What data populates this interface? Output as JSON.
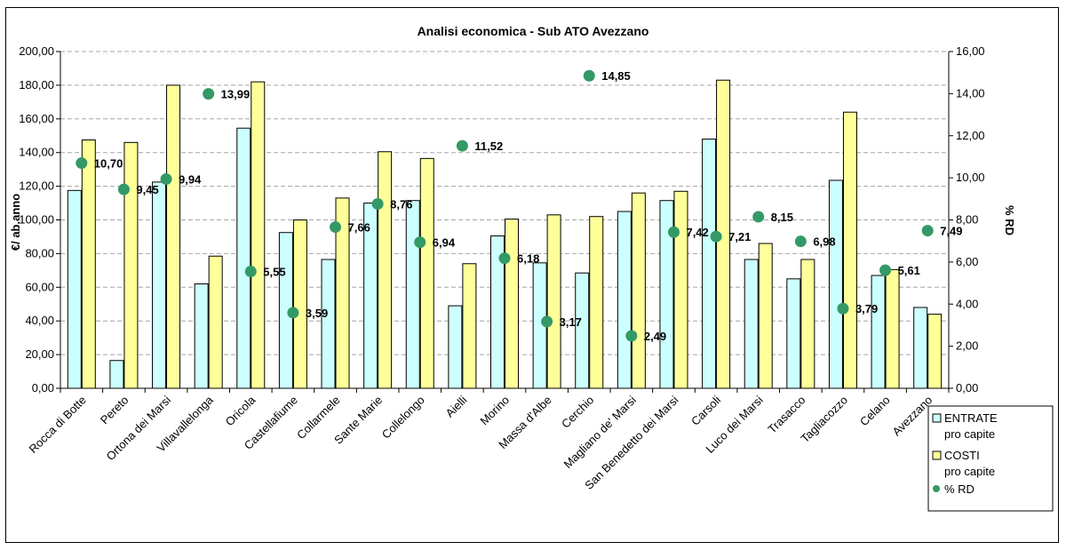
{
  "chart_data": {
    "type": "bar",
    "title": "Analisi economica - Sub ATO Avezzano",
    "ylabel": "€/ ab.anno",
    "y2label": "% RD",
    "ylim": [
      0,
      200
    ],
    "y2lim": [
      0,
      16
    ],
    "yticks": [
      "0,00",
      "20,00",
      "40,00",
      "60,00",
      "80,00",
      "100,00",
      "120,00",
      "140,00",
      "160,00",
      "180,00",
      "200,00"
    ],
    "y2ticks": [
      "0,00",
      "2,00",
      "4,00",
      "6,00",
      "8,00",
      "10,00",
      "12,00",
      "14,00",
      "16,00"
    ],
    "grid": true,
    "legend_position": "bottom-right",
    "colors": {
      "entrate": "#ccffff",
      "costi": "#ffff99",
      "rd": "#339966",
      "grid": "#a6a6a6"
    },
    "categories": [
      "Rocca di Botte",
      "Pereto",
      "Ortona dei Marsi",
      "Villavallelonga",
      "Oricola",
      "Castellafiume",
      "Collarmele",
      "Sante Marie",
      "Collelongo",
      "Aielli",
      "Morino",
      "Massa d'Albe",
      "Cerchio",
      "Magliano de' Marsi",
      "San Benedetto dei Marsi",
      "Carsoli",
      "Luco dei Marsi",
      "Trasacco",
      "Tagliacozzo",
      "Celano",
      "Avezzano"
    ],
    "series": [
      {
        "name": "ENTRATE pro capite",
        "legend_lines": [
          "ENTRATE",
          "pro capite"
        ],
        "type": "bar",
        "axis": "left",
        "values": [
          117.5,
          16.5,
          122.5,
          62,
          154.5,
          92.5,
          76.5,
          110,
          111.5,
          49,
          90.5,
          74.5,
          68.5,
          105,
          111.5,
          148,
          76.5,
          65,
          123.5,
          67,
          48
        ]
      },
      {
        "name": "COSTI pro capite",
        "legend_lines": [
          "COSTI",
          "pro capite"
        ],
        "type": "bar",
        "axis": "left",
        "values": [
          147.5,
          146,
          180,
          78.5,
          182,
          100,
          113,
          140.5,
          136.5,
          74,
          100.5,
          103,
          102,
          116,
          117,
          183,
          86,
          76.5,
          164,
          70.5,
          44
        ]
      },
      {
        "name": "% RD",
        "legend_lines": [
          "% RD"
        ],
        "type": "scatter",
        "axis": "right",
        "values": [
          10.7,
          9.45,
          9.94,
          13.99,
          5.55,
          3.59,
          7.66,
          8.76,
          6.94,
          11.52,
          6.18,
          3.17,
          14.85,
          2.49,
          7.42,
          7.21,
          8.15,
          6.98,
          3.79,
          5.61,
          7.49
        ],
        "labels": [
          "10,70",
          "9,45",
          "9,94",
          "13,99",
          "5,55",
          "3,59",
          "7,66",
          "8,76",
          "6,94",
          "11,52",
          "6,18",
          "3,17",
          "14,85",
          "2,49",
          "7,42",
          "7,21",
          "8,15",
          "6,98",
          "3,79",
          "5,61",
          "7,49"
        ]
      }
    ]
  }
}
